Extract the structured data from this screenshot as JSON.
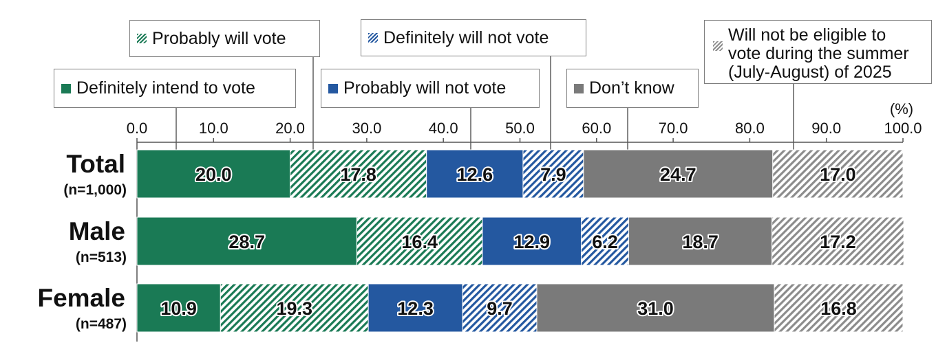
{
  "chart_data": {
    "type": "bar",
    "orientation": "horizontal",
    "stacked": true,
    "unit_label": "(%)",
    "xlim": [
      0,
      100
    ],
    "ticks": [
      "0.0",
      "10.0",
      "20.0",
      "30.0",
      "40.0",
      "50.0",
      "60.0",
      "70.0",
      "80.0",
      "90.0",
      "100.0"
    ],
    "categories": [
      {
        "label": "Total",
        "n": "(n=1,000)"
      },
      {
        "label": "Male",
        "n": "(n=513)"
      },
      {
        "label": "Female",
        "n": "(n=487)"
      }
    ],
    "series": [
      {
        "name": "Definitely intend to vote",
        "color": "#1a7a55",
        "pattern": "solid",
        "values": [
          20.0,
          28.7,
          10.9
        ],
        "labels": [
          "20.0",
          "28.7",
          "10.9"
        ]
      },
      {
        "name": "Probably will vote",
        "color": "#1a7a55",
        "pattern": "hatch",
        "values": [
          17.8,
          16.4,
          19.3
        ],
        "labels": [
          "17.8",
          "16.4",
          "19.3"
        ]
      },
      {
        "name": "Probably will not vote",
        "color": "#2458a0",
        "pattern": "solid",
        "values": [
          12.6,
          12.9,
          12.3
        ],
        "labels": [
          "12.6",
          "12.9",
          "12.3"
        ]
      },
      {
        "name": "Definitely will not vote",
        "color": "#2458a0",
        "pattern": "hatch",
        "values": [
          7.9,
          6.2,
          9.7
        ],
        "labels": [
          "7.9",
          "6.2",
          "9.7"
        ]
      },
      {
        "name": "Don’t know",
        "color": "#7a7a7a",
        "pattern": "solid",
        "values": [
          24.7,
          18.7,
          31.0
        ],
        "labels": [
          "24.7",
          "18.7",
          "31.0"
        ]
      },
      {
        "name": "Will not be eligible to\nvote during the summer\n(July-August) of 2025",
        "color": "#8c8c8c",
        "pattern": "hatch",
        "values": [
          17.0,
          17.2,
          16.8
        ],
        "labels": [
          "17.0",
          "17.2",
          "16.8"
        ]
      }
    ],
    "grid": false,
    "legend_placement": "top, callout boxes with leader lines"
  }
}
